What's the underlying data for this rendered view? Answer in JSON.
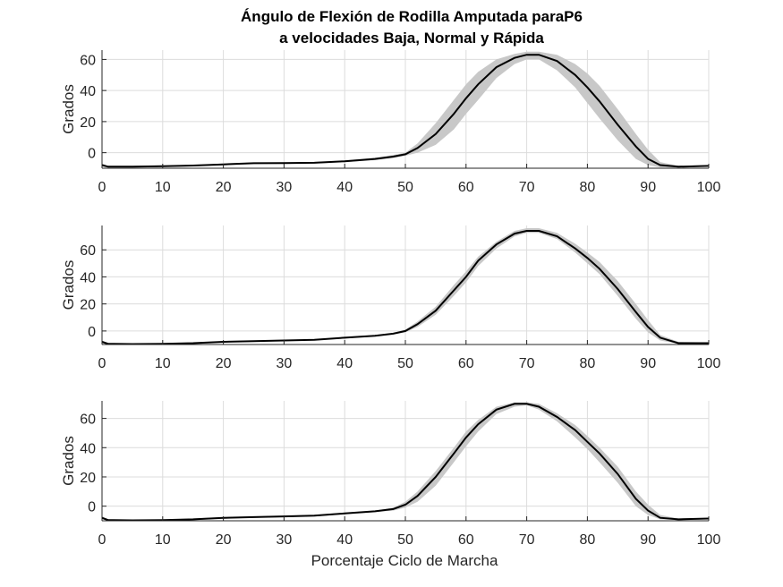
{
  "chart_data": {
    "title_line1": "Ángulo de Flexión de Rodilla Amputada paraP6",
    "title_line2": "a velocidades Baja, Normal y Rápida",
    "xlabel": "Porcentaje Ciclo de Marcha",
    "grid": true,
    "panels": [
      {
        "type": "line",
        "ylabel": "Grados",
        "xlim": [
          0,
          100
        ],
        "ylim": [
          -10,
          66
        ],
        "xticks": [
          0,
          10,
          20,
          30,
          40,
          50,
          60,
          70,
          80,
          90,
          100
        ],
        "yticks": [
          0,
          20,
          40,
          60
        ],
        "series": [
          {
            "values_x": [
              0,
              1,
              5,
              10,
              15,
              20,
              25,
              30,
              35,
              40,
              45,
              48,
              50,
              52,
              55,
              58,
              60,
              62,
              65,
              68,
              70,
              72,
              75,
              78,
              80,
              82,
              85,
              88,
              90,
              92,
              95,
              100
            ],
            "mean": [
              -8,
              -9,
              -9,
              -8.7,
              -8.3,
              -7.5,
              -6.8,
              -6.7,
              -6.5,
              -5.5,
              -4,
              -2.5,
              -1,
              3,
              12,
              25,
              35,
              44,
              55,
              61,
              63,
              63,
              59,
              50,
              42,
              33,
              18,
              4,
              -4,
              -8,
              -9,
              -8.5
            ],
            "lower": [
              -9,
              -9.5,
              -9.5,
              -9.2,
              -8.8,
              -8,
              -7.2,
              -7.2,
              -7,
              -6,
              -4.8,
              -3.5,
              -2,
              0,
              5,
              15,
              25,
              34,
              48,
              57,
              60,
              60,
              53,
              42,
              32,
              22,
              8,
              -4,
              -8,
              -9.5,
              -9.5,
              -9
            ],
            "upper": [
              -7,
              -8.5,
              -8.5,
              -8.2,
              -7.8,
              -7,
              -6.3,
              -6.2,
              -6,
              -5,
              -3.2,
              -1.5,
              0,
              6,
              19,
              34,
              44,
              52,
              60,
              63.5,
              65,
              65,
              63,
              57,
              51,
              43,
              28,
              12,
              2,
              -6,
              -8.5,
              -8
            ]
          }
        ]
      },
      {
        "type": "line",
        "ylabel": "Grados",
        "xlim": [
          0,
          100
        ],
        "ylim": [
          -10,
          78
        ],
        "xticks": [
          0,
          10,
          20,
          30,
          40,
          50,
          60,
          70,
          80,
          90,
          100
        ],
        "yticks": [
          0,
          20,
          40,
          60
        ],
        "series": [
          {
            "values_x": [
              0,
              1,
              5,
              10,
              15,
              20,
              25,
              30,
              35,
              40,
              45,
              48,
              50,
              52,
              55,
              58,
              60,
              62,
              65,
              68,
              70,
              72,
              75,
              78,
              80,
              82,
              85,
              88,
              90,
              92,
              95,
              100
            ],
            "mean": [
              -8,
              -9.5,
              -9.7,
              -9.5,
              -9,
              -8,
              -7.5,
              -7,
              -6.5,
              -5,
              -3.5,
              -2,
              0,
              5,
              15,
              30,
              40,
              52,
              64,
              72,
              74,
              74,
              70,
              61,
              54,
              46,
              31,
              14,
              3,
              -5,
              -9,
              -9
            ],
            "lower": [
              -9,
              -10,
              -10,
              -10,
              -9.5,
              -8.5,
              -8,
              -7.5,
              -7,
              -5.5,
              -4,
              -2.5,
              -1,
              3,
              12,
              26,
              36,
              48,
              61,
              70,
              72.5,
              72.5,
              68,
              58,
              50,
              42,
              26,
              9,
              -1,
              -7,
              -9.5,
              -9.5
            ],
            "upper": [
              -7,
              -9,
              -9.3,
              -9,
              -8.5,
              -7.5,
              -7,
              -6.5,
              -6,
              -4.5,
              -3,
              -1.5,
              1,
              7,
              18,
              34,
              44,
              55,
              66,
              74,
              76,
              76,
              72.5,
              64.5,
              58,
              51,
              37,
              20,
              8,
              -3,
              -8,
              -8.5
            ]
          }
        ]
      },
      {
        "type": "line",
        "ylabel": "Grados",
        "xlabel": "Porcentaje Ciclo de Marcha",
        "xlim": [
          0,
          100
        ],
        "ylim": [
          -10,
          72
        ],
        "xticks": [
          0,
          10,
          20,
          30,
          40,
          50,
          60,
          70,
          80,
          90,
          100
        ],
        "yticks": [
          0,
          20,
          40,
          60
        ],
        "series": [
          {
            "values_x": [
              0,
              1,
              5,
              10,
              15,
              20,
              25,
              30,
              35,
              40,
              45,
              48,
              50,
              52,
              55,
              58,
              60,
              62,
              65,
              68,
              70,
              72,
              75,
              78,
              80,
              82,
              85,
              88,
              90,
              92,
              95,
              100
            ],
            "mean": [
              -8,
              -9.5,
              -9.7,
              -9.6,
              -9,
              -8,
              -7.5,
              -7,
              -6.5,
              -5,
              -3.5,
              -2,
              1,
              7,
              20,
              36,
              47,
              56,
              66,
              70,
              70,
              68,
              61,
              52,
              44,
              36,
              22,
              5,
              -3,
              -8,
              -9,
              -8.5
            ],
            "lower": [
              -9,
              -10,
              -10,
              -10,
              -9.5,
              -8.5,
              -8,
              -7.5,
              -7,
              -5.5,
              -4,
              -3,
              -1,
              3,
              14,
              30,
              41,
              51,
              63,
              68,
              69,
              66,
              58,
              47,
              39,
              30,
              16,
              0,
              -6,
              -9,
              -9.5,
              -9
            ],
            "upper": [
              -7,
              -9,
              -9.4,
              -9.2,
              -8.5,
              -7.5,
              -7,
              -6.5,
              -6,
              -4.5,
              -3,
              -1,
              3,
              10,
              24,
              40,
              51,
              59,
              68,
              71,
              71,
              70,
              63.5,
              55.5,
              48,
              40,
              27,
              10,
              1,
              -6,
              -8.5,
              -8
            ]
          }
        ]
      }
    ]
  }
}
